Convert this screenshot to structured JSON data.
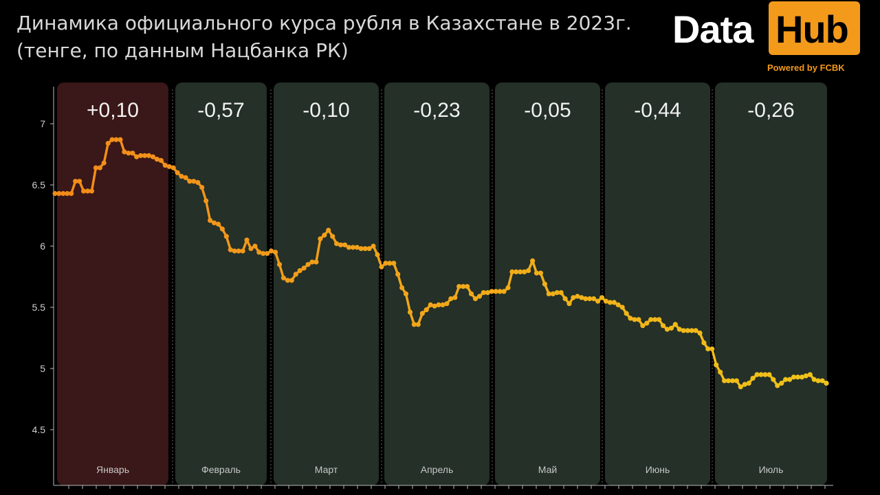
{
  "header": {
    "title_line1": "Динамика официального курса рубля в Казахстане в 2023г.",
    "title_line2": "(тенге, по данным Нацбанка РК)"
  },
  "logo": {
    "word1": "Data",
    "word2": "Hub",
    "powered": "Powered by FCBK",
    "accent_color": "#f39a1b"
  },
  "chart_data": {
    "type": "line",
    "title": "Динамика официального курса рубля в Казахстане в 2023г.",
    "subtitle": "(тенге, по данным Нацбанка РК)",
    "ylim": [
      4.2,
      7.3
    ],
    "yticks": [
      4.5,
      5,
      5.5,
      6,
      6.5,
      7
    ],
    "ytick_labels": [
      "4.5",
      "5",
      "5.5",
      "6",
      "6.5",
      "7"
    ],
    "grid": false,
    "line_color_start": "#f28a1a",
    "line_color_end": "#f0c419",
    "months": [
      {
        "label": "Январь",
        "change": "+0,10",
        "positive": true
      },
      {
        "label": "Февраль",
        "change": "-0,57",
        "positive": false
      },
      {
        "label": "Март",
        "change": "-0,10",
        "positive": false
      },
      {
        "label": "Апрель",
        "change": "-0,23",
        "positive": false
      },
      {
        "label": "Май",
        "change": "-0,05",
        "positive": false
      },
      {
        "label": "Июнь",
        "change": "-0,44",
        "positive": false
      },
      {
        "label": "Июль",
        "change": "-0,26",
        "positive": false
      }
    ],
    "colors": {
      "positive_panel": "#3a1718",
      "negative_panel": "#243028"
    },
    "series": [
      {
        "values": [
          6.43,
          6.43,
          6.43,
          6.43,
          6.43,
          6.53,
          6.53,
          6.45,
          6.45,
          6.45,
          6.64,
          6.64,
          6.68,
          6.84,
          6.87,
          6.87,
          6.87,
          6.77,
          6.76,
          6.76,
          6.73,
          6.74,
          6.74,
          6.74,
          6.73,
          6.71,
          6.7,
          6.66,
          6.65,
          6.64,
          6.6,
          6.57,
          6.56,
          6.53,
          6.53,
          6.52,
          6.48,
          6.37,
          6.21,
          6.19,
          6.18,
          6.14,
          6.08,
          5.97,
          5.96,
          5.96,
          5.96,
          6.05,
          5.98,
          6.0,
          5.95,
          5.94,
          5.94,
          5.96,
          5.95,
          5.85,
          5.74,
          5.72,
          5.72,
          5.77,
          5.8,
          5.82,
          5.85,
          5.87,
          5.87,
          6.06,
          6.09,
          6.13,
          6.08,
          6.02,
          6.01,
          6.01,
          5.99,
          5.99,
          5.99,
          5.98,
          5.98,
          5.98,
          6.0,
          5.93,
          5.83,
          5.86,
          5.86,
          5.86,
          5.77,
          5.66,
          5.61,
          5.46,
          5.36,
          5.36,
          5.45,
          5.48,
          5.52,
          5.51,
          5.52,
          5.52,
          5.53,
          5.57,
          5.58,
          5.67,
          5.67,
          5.67,
          5.61,
          5.57,
          5.59,
          5.62,
          5.62,
          5.63,
          5.63,
          5.63,
          5.63,
          5.66,
          5.79,
          5.79,
          5.79,
          5.79,
          5.8,
          5.88,
          5.78,
          5.78,
          5.69,
          5.61,
          5.61,
          5.62,
          5.62,
          5.57,
          5.53,
          5.58,
          5.59,
          5.58,
          5.57,
          5.57,
          5.57,
          5.55,
          5.58,
          5.55,
          5.54,
          5.54,
          5.52,
          5.5,
          5.45,
          5.41,
          5.4,
          5.4,
          5.35,
          5.37,
          5.4,
          5.4,
          5.4,
          5.35,
          5.32,
          5.33,
          5.36,
          5.32,
          5.31,
          5.31,
          5.31,
          5.31,
          5.29,
          5.21,
          5.16,
          5.16,
          5.03,
          4.97,
          4.9,
          4.9,
          4.9,
          4.9,
          4.85,
          4.87,
          4.88,
          4.92,
          4.95,
          4.95,
          4.95,
          4.95,
          4.91,
          4.86,
          4.88,
          4.91,
          4.91,
          4.93,
          4.93,
          4.93,
          4.94,
          4.95,
          4.91,
          4.9,
          4.9,
          4.88
        ]
      }
    ]
  }
}
